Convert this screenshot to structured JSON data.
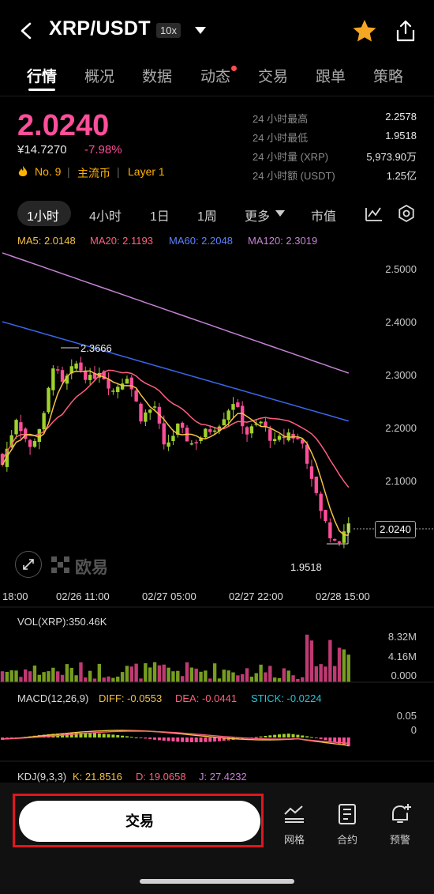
{
  "header": {
    "back_icon": "chevron-left-icon",
    "symbol": "XRP/USDT",
    "leverage": "10x",
    "dropdown_icon": "caret-down-icon",
    "favorite_icon": "star-icon",
    "share_icon": "share-icon",
    "favorite_color": "#f5a623"
  },
  "tabs": [
    {
      "label": "行情",
      "active": true
    },
    {
      "label": "概况"
    },
    {
      "label": "数据"
    },
    {
      "label": "动态",
      "dot": true
    },
    {
      "label": "交易"
    },
    {
      "label": "跟单"
    },
    {
      "label": "策略"
    }
  ],
  "price": {
    "last": "2.0240",
    "cny": "¥14.7270",
    "change": "-7.98%",
    "rank": "No. 9",
    "tag1": "主流币",
    "tag2": "Layer 1",
    "accent": "#ff4e9a"
  },
  "stats": [
    {
      "label": "24 小时最高",
      "value": "2.2578"
    },
    {
      "label": "24 小时最低",
      "value": "1.9518"
    },
    {
      "label": "24 小时量 (XRP)",
      "value": "5,973.90万"
    },
    {
      "label": "24 小时额 (USDT)",
      "value": "1.25亿"
    }
  ],
  "periods": [
    "1小时",
    "4小时",
    "1日",
    "1周",
    "更多",
    "市值"
  ],
  "period_active": "1小时",
  "ma_legend": [
    {
      "label": "MA5: 2.0148",
      "color": "#f5c142"
    },
    {
      "label": "MA20: 2.1193",
      "color": "#ff5f7e"
    },
    {
      "label": "MA60: 2.2048",
      "color": "#3a67e8"
    },
    {
      "label": "MA120: 2.3019",
      "color": "#c682d6"
    }
  ],
  "price_axis": [
    "2.5000",
    "2.4000",
    "2.3000",
    "2.2000",
    "2.1000"
  ],
  "current_price_label": "2.0240",
  "high_marker": "2.3666",
  "low_marker": "1.9518",
  "watermark": "欧易",
  "time_axis": [
    "18:00",
    "02/26 11:00",
    "02/27 05:00",
    "02/27 22:00",
    "02/28 15:00"
  ],
  "volume": {
    "title": "VOL(XRP):350.46K",
    "axis": [
      "8.32M",
      "4.16M",
      "0.000"
    ]
  },
  "macd": {
    "title": "MACD(12,26,9)",
    "diff": "DIFF: -0.0553",
    "dea": "DEA: -0.0441",
    "stick": "STICK: -0.0224",
    "axis": [
      "0.05",
      "0"
    ]
  },
  "kdj": {
    "title": "KDJ(9,3,3)",
    "k": "K: 21.8516",
    "d": "D: 19.0658",
    "j": "J: 27.4232"
  },
  "bottom": {
    "trade_label": "交易",
    "grid_label": "网格",
    "contract_label": "合约",
    "alert_label": "预警"
  },
  "colors": {
    "up": "#9fd22b",
    "down": "#ff4e9a",
    "ma5": "#f5c142",
    "ma20": "#ff5f7e",
    "ma60": "#3a67e8",
    "ma120": "#c682d6"
  }
}
